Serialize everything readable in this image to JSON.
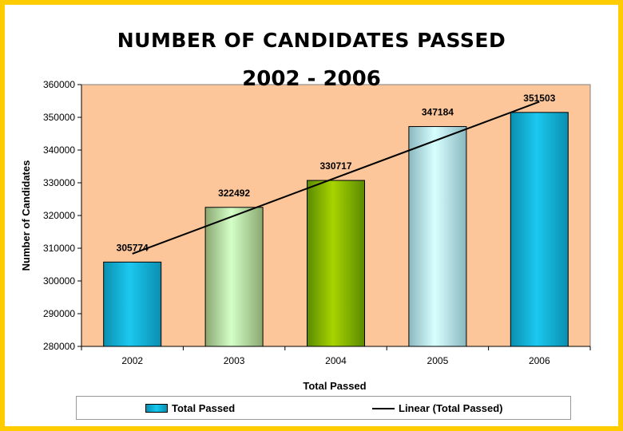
{
  "chart_data": {
    "type": "bar",
    "title": "NUMBER OF CANDIDATES PASSED",
    "subtitle": "2002 - 2006",
    "xlabel": "Total Passed",
    "ylabel": "Number of Candidates",
    "categories": [
      "2002",
      "2003",
      "2004",
      "2005",
      "2006"
    ],
    "series": [
      {
        "name": "Total Passed",
        "values": [
          305774,
          322492,
          330717,
          347184,
          351503
        ]
      }
    ],
    "trendline": {
      "type": "linear",
      "name": "Linear (Total Passed)",
      "color": "#000000"
    },
    "ylim": [
      280000,
      360000
    ],
    "yticks": [
      280000,
      290000,
      300000,
      310000,
      320000,
      330000,
      340000,
      350000,
      360000
    ],
    "data_labels": true,
    "grid": false,
    "legend_position": "bottom",
    "colors": {
      "frame": "#ffcc00",
      "plot_bg": "#fcc69a",
      "bars": [
        [
          "#0a8fb0",
          "#1cc8f0"
        ],
        [
          "#8aa870",
          "#d4ffc8"
        ],
        [
          "#5a8a00",
          "#a8d400"
        ],
        [
          "#8ab8c0",
          "#d8ffff"
        ],
        [
          "#0a8fb0",
          "#1cc8f0"
        ]
      ]
    }
  }
}
